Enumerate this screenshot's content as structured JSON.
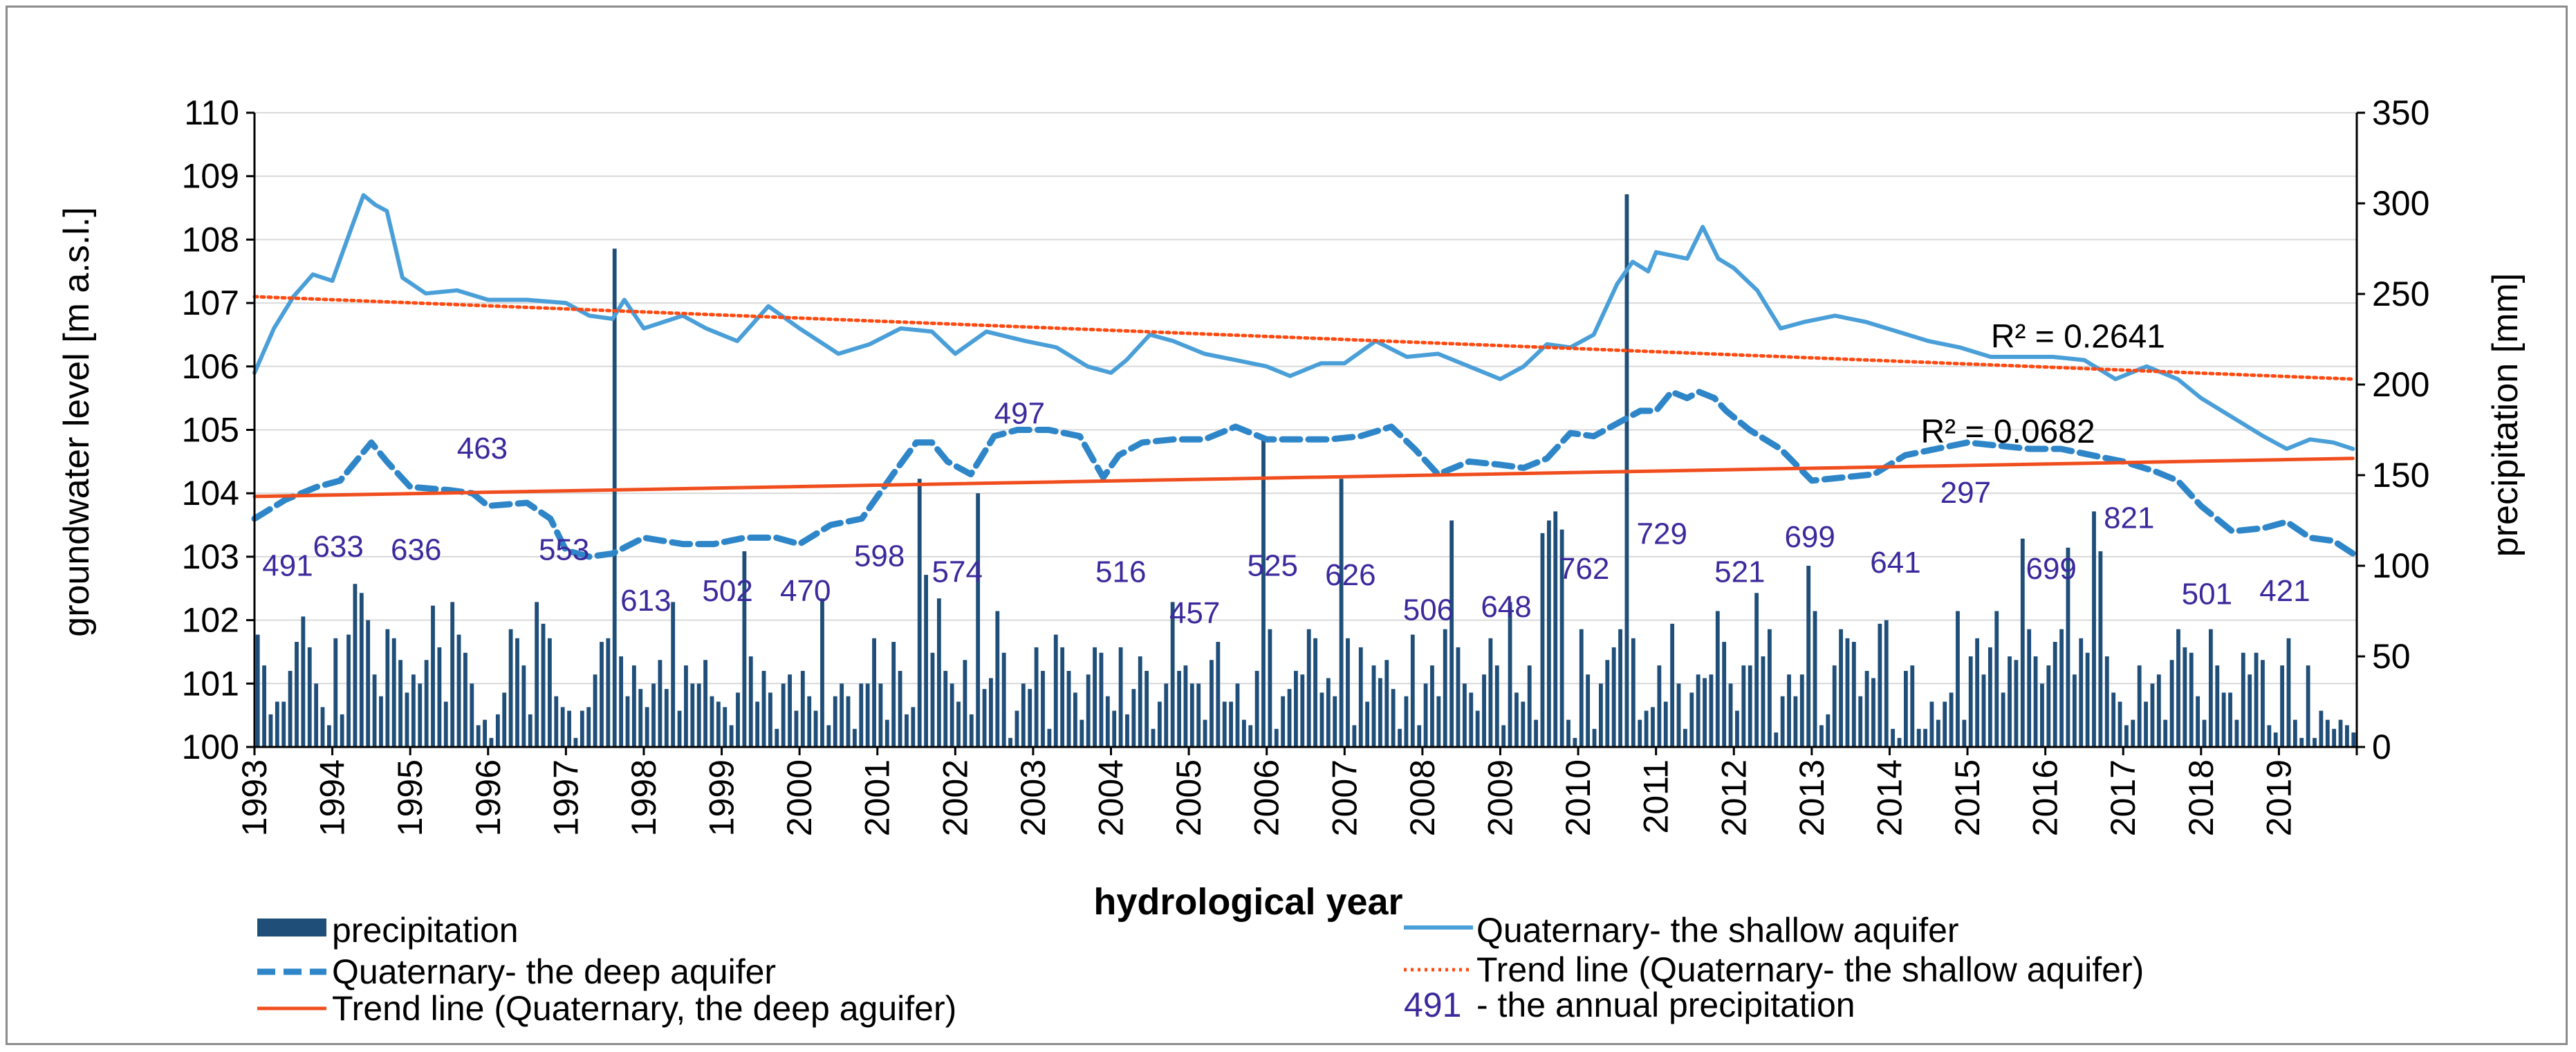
{
  "chart_data": {
    "type": "bar+line",
    "title": "",
    "xlabel": "hydrological year",
    "ylabel_left": "groundwater level  [m a.s.l.]",
    "ylabel_right": "precipitation  [mm]",
    "ylim_left": [
      100,
      110
    ],
    "ylim_right": [
      0,
      350
    ],
    "xlim": [
      1993,
      2020
    ],
    "yticks_left": [
      "100",
      "101",
      "102",
      "103",
      "104",
      "105",
      "106",
      "107",
      "108",
      "109",
      "110"
    ],
    "yticks_right": [
      "0",
      "50",
      "100",
      "150",
      "200",
      "250",
      "300",
      "350"
    ],
    "x_ticks": [
      "1993",
      "1994",
      "1995",
      "1996",
      "1997",
      "1998",
      "1999",
      "2000",
      "2001",
      "2002",
      "2003",
      "2004",
      "2005",
      "2006",
      "2007",
      "2008",
      "2009",
      "2010",
      "2011",
      "2012",
      "2013",
      "2014",
      "2015",
      "2016",
      "2017",
      "2018",
      "2019"
    ],
    "colors": {
      "precipitation": "#1f4e79",
      "shallow": "#4a9fd8",
      "deep": "#2e86c9",
      "trend_shallow": "#ff4a12",
      "trend_deep": "#f04e1e",
      "annot": "#3b2a9c",
      "grid": "#d9d9d9"
    },
    "series": [
      {
        "name": "Quaternary-  the shallow aquifer",
        "axis": "left",
        "style": "solid",
        "x": [
          1993.0,
          1993.25,
          1993.5,
          1993.75,
          1994.0,
          1994.25,
          1994.4,
          1994.55,
          1994.7,
          1994.9,
          1995.2,
          1995.6,
          1996.0,
          1996.5,
          1997.0,
          1997.3,
          1997.6,
          1997.75,
          1998.0,
          1998.5,
          1998.8,
          1999.2,
          1999.6,
          2000.0,
          2000.5,
          2000.9,
          2001.3,
          2001.7,
          2002.0,
          2002.4,
          2002.9,
          2003.3,
          2003.7,
          2004.0,
          2004.2,
          2004.5,
          2004.8,
          2005.2,
          2005.6,
          2006.0,
          2006.3,
          2006.7,
          2007.0,
          2007.4,
          2007.8,
          2008.2,
          2008.6,
          2009.0,
          2009.3,
          2009.6,
          2009.9,
          2010.2,
          2010.5,
          2010.7,
          2010.9,
          2011.0,
          2011.2,
          2011.4,
          2011.6,
          2011.8,
          2012.0,
          2012.3,
          2012.6,
          2012.9,
          2013.3,
          2013.7,
          2014.1,
          2014.5,
          2014.9,
          2015.3,
          2015.7,
          2016.1,
          2016.5,
          2016.9,
          2017.3,
          2017.7,
          2018.0,
          2018.4,
          2018.8,
          2019.1,
          2019.4,
          2019.7,
          2019.95
        ],
        "values": [
          105.9,
          106.6,
          107.1,
          107.45,
          107.35,
          108.2,
          108.7,
          108.55,
          108.45,
          107.4,
          107.15,
          107.2,
          107.05,
          107.05,
          107.0,
          106.8,
          106.75,
          107.05,
          106.6,
          106.8,
          106.6,
          106.4,
          106.95,
          106.6,
          106.2,
          106.35,
          106.6,
          106.55,
          106.2,
          106.55,
          106.4,
          106.3,
          106.0,
          105.9,
          106.1,
          106.5,
          106.4,
          106.2,
          106.1,
          106.0,
          105.85,
          106.05,
          106.05,
          106.4,
          106.15,
          106.2,
          106.0,
          105.8,
          106.0,
          106.35,
          106.3,
          106.5,
          107.3,
          107.65,
          107.5,
          107.8,
          107.75,
          107.7,
          108.2,
          107.7,
          107.55,
          107.2,
          106.6,
          106.7,
          106.8,
          106.7,
          106.55,
          106.4,
          106.3,
          106.15,
          106.15,
          106.15,
          106.1,
          105.8,
          106.0,
          105.8,
          105.5,
          105.2,
          104.9,
          104.7,
          104.85,
          104.8,
          104.7
        ]
      },
      {
        "name": "Quaternary-  the deep aquifer",
        "axis": "left",
        "style": "dashed",
        "x": [
          1993.0,
          1993.4,
          1993.8,
          1994.1,
          1994.3,
          1994.5,
          1994.7,
          1995.0,
          1995.5,
          1995.8,
          1996.0,
          1996.5,
          1996.8,
          1997.0,
          1997.3,
          1997.6,
          1998.0,
          1998.5,
          1998.9,
          1999.3,
          1999.7,
          2000.0,
          2000.4,
          2000.8,
          2001.2,
          2001.5,
          2001.7,
          2001.9,
          2002.2,
          2002.5,
          2002.8,
          2003.2,
          2003.6,
          2003.9,
          2004.1,
          2004.4,
          2004.8,
          2005.2,
          2005.6,
          2006.0,
          2006.4,
          2006.8,
          2007.2,
          2007.6,
          2007.9,
          2008.2,
          2008.6,
          2009.0,
          2009.3,
          2009.6,
          2009.9,
          2010.2,
          2010.5,
          2010.8,
          2011.0,
          2011.2,
          2011.4,
          2011.55,
          2011.75,
          2011.9,
          2012.2,
          2012.6,
          2013.0,
          2013.4,
          2013.8,
          2014.2,
          2014.6,
          2015.0,
          2015.4,
          2015.8,
          2016.2,
          2016.6,
          2017.0,
          2017.4,
          2017.7,
          2018.0,
          2018.4,
          2018.8,
          2019.1,
          2019.4,
          2019.7,
          2019.95
        ],
        "values": [
          103.6,
          103.9,
          104.1,
          104.2,
          104.5,
          104.8,
          104.5,
          104.1,
          104.05,
          104.0,
          103.8,
          103.85,
          103.6,
          103.1,
          103.0,
          103.05,
          103.3,
          103.2,
          103.2,
          103.3,
          103.3,
          103.2,
          103.5,
          103.6,
          104.3,
          104.8,
          104.8,
          104.5,
          104.3,
          104.9,
          105.0,
          105.0,
          104.9,
          104.25,
          104.6,
          104.8,
          104.85,
          104.85,
          105.05,
          104.85,
          104.85,
          104.85,
          104.9,
          105.05,
          104.7,
          104.3,
          104.5,
          104.45,
          104.4,
          104.55,
          104.95,
          104.9,
          105.1,
          105.3,
          105.3,
          105.6,
          105.5,
          105.6,
          105.5,
          105.3,
          105.0,
          104.7,
          104.2,
          104.25,
          104.3,
          104.6,
          104.7,
          104.8,
          104.75,
          104.7,
          104.7,
          104.6,
          104.5,
          104.35,
          104.2,
          103.8,
          103.4,
          103.45,
          103.55,
          103.3,
          103.25,
          103.05
        ]
      },
      {
        "name": "Trend line (Quaternary- the shallow aquifer)",
        "axis": "left",
        "style": "dotted",
        "x": [
          1993.0,
          2019.95
        ],
        "values": [
          107.1,
          105.8
        ]
      },
      {
        "name": "Trend line (Quaternary, the deep aguifer)",
        "axis": "left",
        "style": "solid",
        "x": [
          1993.0,
          2019.95
        ],
        "values": [
          103.95,
          104.55
        ]
      }
    ],
    "precipitation": {
      "name": "precipitation",
      "axis": "right",
      "start_year": 1993,
      "months_per_year": 12,
      "values": [
        62,
        45,
        18,
        25,
        25,
        42,
        58,
        72,
        55,
        35,
        22,
        12,
        60,
        18,
        62,
        90,
        85,
        70,
        40,
        28,
        65,
        60,
        48,
        30,
        40,
        35,
        48,
        78,
        55,
        25,
        80,
        62,
        52,
        35,
        12,
        15,
        5,
        18,
        30,
        65,
        60,
        45,
        18,
        80,
        68,
        60,
        28,
        22,
        20,
        5,
        20,
        22,
        40,
        58,
        60,
        275,
        50,
        28,
        45,
        32,
        22,
        35,
        48,
        32,
        80,
        20,
        45,
        35,
        35,
        48,
        28,
        25,
        22,
        12,
        30,
        108,
        50,
        25,
        42,
        30,
        10,
        35,
        40,
        20,
        42,
        28,
        20,
        82,
        12,
        28,
        35,
        28,
        10,
        35,
        35,
        60,
        35,
        15,
        58,
        42,
        18,
        22,
        148,
        95,
        52,
        82,
        42,
        35,
        25,
        48,
        18,
        140,
        32,
        38,
        75,
        52,
        5,
        20,
        35,
        32,
        55,
        42,
        10,
        62,
        55,
        42,
        30,
        15,
        40,
        55,
        52,
        28,
        20,
        55,
        18,
        32,
        50,
        42,
        10,
        25,
        35,
        80,
        42,
        45,
        35,
        35,
        15,
        48,
        58,
        25,
        25,
        35,
        15,
        12,
        42,
        170,
        65,
        10,
        28,
        32,
        42,
        40,
        65,
        60,
        30,
        38,
        28,
        148,
        60,
        12,
        55,
        25,
        45,
        38,
        48,
        32,
        10,
        28,
        62,
        12,
        35,
        45,
        28,
        65,
        125,
        55,
        35,
        30,
        20,
        40,
        60,
        45,
        12,
        80,
        30,
        25,
        45,
        15,
        118,
        125,
        130,
        120,
        15,
        5,
        65,
        40,
        10,
        35,
        48,
        55,
        65,
        305,
        60,
        15,
        20,
        22,
        45,
        25,
        68,
        35,
        10,
        30,
        40,
        38,
        40,
        75,
        58,
        35,
        20,
        45,
        45,
        85,
        50,
        65,
        8,
        28,
        40,
        28,
        40,
        100,
        75,
        12,
        18,
        45,
        65,
        60,
        58,
        28,
        42,
        38,
        68,
        70,
        10,
        5,
        42,
        45,
        10,
        10,
        25,
        15,
        25,
        30,
        75,
        15,
        50,
        60,
        40,
        55,
        75,
        30,
        50,
        48,
        115,
        65,
        50,
        35,
        45,
        58,
        65,
        110,
        40,
        60,
        52,
        130,
        108,
        50,
        30,
        25,
        12,
        15,
        45,
        25,
        35,
        40,
        15,
        48,
        65,
        55,
        52,
        28,
        15,
        65,
        45,
        30,
        30,
        15,
        52,
        40,
        52,
        48,
        12,
        8,
        45,
        60,
        15,
        5,
        45,
        5,
        20,
        15,
        10,
        15,
        12,
        8
      ]
    },
    "annotations": [
      {
        "text": "491",
        "x": 1993.1,
        "y": 102.7
      },
      {
        "text": "633",
        "x": 1993.75,
        "y": 103.0
      },
      {
        "text": "636",
        "x": 1994.75,
        "y": 102.95
      },
      {
        "text": "463",
        "x": 1995.6,
        "y": 104.55
      },
      {
        "text": "553",
        "x": 1996.65,
        "y": 102.95
      },
      {
        "text": "613",
        "x": 1997.7,
        "y": 102.15
      },
      {
        "text": "502",
        "x": 1998.75,
        "y": 102.3
      },
      {
        "text": "470",
        "x": 1999.75,
        "y": 102.3
      },
      {
        "text": "598",
        "x": 2000.7,
        "y": 102.85
      },
      {
        "text": "574",
        "x": 2001.7,
        "y": 102.6
      },
      {
        "text": "497",
        "x": 2002.5,
        "y": 105.1
      },
      {
        "text": "516",
        "x": 2003.8,
        "y": 102.6
      },
      {
        "text": "457",
        "x": 2004.75,
        "y": 101.95
      },
      {
        "text": "525",
        "x": 2005.75,
        "y": 102.7
      },
      {
        "text": "626",
        "x": 2006.75,
        "y": 102.55
      },
      {
        "text": "506",
        "x": 2007.75,
        "y": 102.0
      },
      {
        "text": "648",
        "x": 2008.75,
        "y": 102.05
      },
      {
        "text": "762",
        "x": 2009.75,
        "y": 102.65
      },
      {
        "text": "729",
        "x": 2010.75,
        "y": 103.2
      },
      {
        "text": "521",
        "x": 2011.75,
        "y": 102.6
      },
      {
        "text": "699",
        "x": 2012.65,
        "y": 103.15
      },
      {
        "text": "641",
        "x": 2013.75,
        "y": 102.75
      },
      {
        "text": "297",
        "x": 2014.65,
        "y": 103.85
      },
      {
        "text": "699",
        "x": 2015.75,
        "y": 102.65
      },
      {
        "text": "821",
        "x": 2016.75,
        "y": 103.45
      },
      {
        "text": "501",
        "x": 2017.75,
        "y": 102.25
      },
      {
        "text": "421",
        "x": 2018.75,
        "y": 102.3
      }
    ],
    "r2_labels": [
      {
        "text": "R² = 0.2641",
        "x": 2015.3,
        "y": 106.3
      },
      {
        "text": "R² = 0.0682",
        "x": 2014.4,
        "y": 104.8
      }
    ],
    "legend": {
      "placement": "bottom",
      "items": [
        {
          "label": "precipitation",
          "kind": "bar"
        },
        {
          "label": "Quaternary-  the shallow aquifer",
          "kind": "solid-line"
        },
        {
          "label": "Quaternary-  the deep aquifer",
          "kind": "dashed-line"
        },
        {
          "label": "Trend line (Quaternary- the shallow aquifer)",
          "kind": "dotted-line"
        },
        {
          "label": "Trend line (Quaternary, the deep aguifer)",
          "kind": "trend-line"
        },
        {
          "label": "- the annual precipitation",
          "kind": "number",
          "num": "491"
        }
      ]
    }
  }
}
